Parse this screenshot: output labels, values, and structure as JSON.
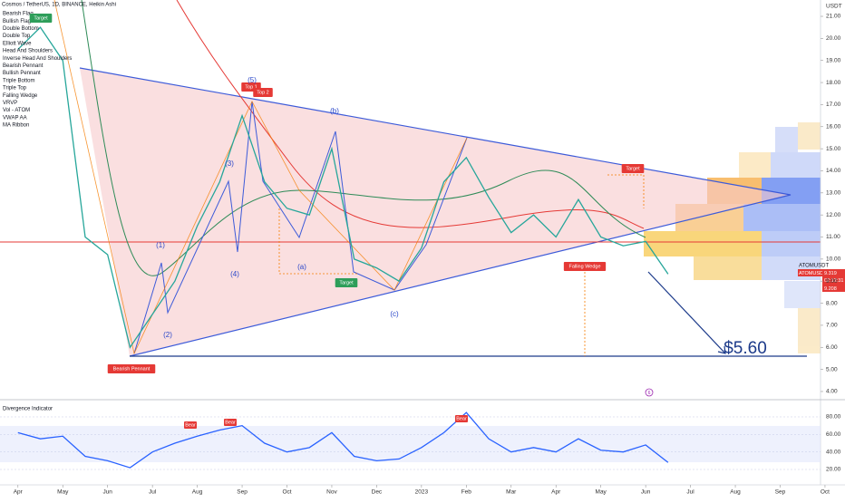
{
  "chart_data": [
    {
      "type": "line",
      "title": "Cosmos / TetherUS, 1D, BINANCE, Heikin Ashi",
      "y_label": "USDT",
      "x": [
        0,
        0.5,
        1,
        1.5,
        2,
        2.5,
        3,
        3.5,
        4,
        4.5,
        5,
        5.5,
        6,
        6.5,
        7,
        7.5,
        8,
        8.5,
        9,
        9.5,
        10,
        10.5,
        11,
        11.5,
        12,
        12.5,
        13,
        13.5,
        14,
        14.5
      ],
      "series": [
        {
          "name": "ATOMUSDT",
          "color": "#26a69a",
          "values": [
            19.5,
            20.5,
            19,
            11,
            10.2,
            6.0,
            7.5,
            9.0,
            11.5,
            13.5,
            16.5,
            13.5,
            12.3,
            12.0,
            15.0,
            10.0,
            9.6,
            9.0,
            10.5,
            13.5,
            14.6,
            12.8,
            11.2,
            12.0,
            11.0,
            12.7,
            11.0,
            10.6,
            10.8,
            9.32
          ]
        }
      ],
      "xlim": [
        -0.4,
        17.9
      ],
      "xticks": [
        {
          "value": 0,
          "label": "Apr"
        },
        {
          "value": 1,
          "label": "May"
        },
        {
          "value": 2,
          "label": "Jun"
        },
        {
          "value": 3,
          "label": "Jul"
        },
        {
          "value": 4,
          "label": "Aug"
        },
        {
          "value": 5,
          "label": "Sep"
        },
        {
          "value": 6,
          "label": "Oct"
        },
        {
          "value": 7,
          "label": "Nov"
        },
        {
          "value": 8,
          "label": "Dec"
        },
        {
          "value": 9,
          "label": "2023"
        },
        {
          "value": 10,
          "label": "Feb"
        },
        {
          "value": 11,
          "label": "Mar"
        },
        {
          "value": 12,
          "label": "Apr"
        },
        {
          "value": 13,
          "label": "May"
        },
        {
          "value": 14,
          "label": "Jun"
        },
        {
          "value": 15,
          "label": "Jul"
        },
        {
          "value": 16,
          "label": "Aug"
        },
        {
          "value": 17,
          "label": "Sep"
        },
        {
          "value": 18,
          "label": "Oct"
        }
      ],
      "ylim": [
        3.67,
        21.74
      ],
      "yticks": [
        {
          "value": 4,
          "label": "4.00"
        },
        {
          "value": 5,
          "label": "5.00"
        },
        {
          "value": 6,
          "label": "6.00"
        },
        {
          "value": 7,
          "label": "7.00"
        },
        {
          "value": 8,
          "label": "8.00"
        },
        {
          "value": 9,
          "label": "9.00"
        },
        {
          "value": 10,
          "label": "10.00"
        },
        {
          "value": 11,
          "label": "11.00"
        },
        {
          "value": 12,
          "label": "12.00"
        },
        {
          "value": 13,
          "label": "13.00"
        },
        {
          "value": 14,
          "label": "14.00"
        },
        {
          "value": 15,
          "label": "15.00"
        },
        {
          "value": 16,
          "label": "16.00"
        },
        {
          "value": 17,
          "label": "17.00"
        },
        {
          "value": 18,
          "label": "18.00"
        },
        {
          "value": 19,
          "label": "19.00"
        },
        {
          "value": 20,
          "label": "20.00"
        },
        {
          "value": 21,
          "label": "21.00"
        }
      ],
      "legend": [
        "Bearish Flag",
        "Bullish Flag",
        "Double Bottom",
        "Double Top",
        "Elliott Wave",
        "Head And Shoulders",
        "Inverse Head And Shoulders",
        "Bearish Pennant",
        "Bullish Pennant",
        "Triple Bottom",
        "Triple Top",
        "Falling Wedge",
        "VRVP",
        "Vol - ATOM",
        "VWAP AA",
        "MA Ribbon"
      ],
      "annotations": [
        "Target",
        "Top 1",
        "Top 2",
        "(5)",
        "(3)",
        "(1)",
        "(2)",
        "(4)",
        "(a)",
        "(b)",
        "(c)",
        "Target",
        "Target",
        "Falling Wedge",
        "Bearish Pennant",
        "$5.60"
      ],
      "last_price_symbol": "ATOMUSDT",
      "last_price": 9.319,
      "countdown": "02:12:31",
      "low_price": 9.208,
      "volume_badge": "6"
    },
    {
      "type": "line",
      "title": "Divergence Indicator",
      "x": [
        0,
        0.5,
        1,
        1.5,
        2,
        2.5,
        3,
        3.5,
        4,
        4.5,
        5,
        5.5,
        6,
        6.5,
        7,
        7.5,
        8,
        8.5,
        9,
        9.5,
        10,
        10.5,
        11,
        11.5,
        12,
        12.5,
        13,
        13.5,
        14,
        14.5
      ],
      "series": [
        {
          "color": "#2962ff",
          "values": [
            62,
            55,
            58,
            35,
            30,
            22,
            40,
            50,
            58,
            65,
            70,
            50,
            40,
            45,
            62,
            35,
            30,
            32,
            45,
            62,
            85,
            55,
            40,
            45,
            40,
            55,
            42,
            40,
            48,
            28
          ]
        }
      ],
      "ylim": [
        7.6,
        95.5
      ],
      "yticks": [
        {
          "value": 20,
          "label": "20.00"
        },
        {
          "value": 40,
          "label": "40.00"
        },
        {
          "value": 60,
          "label": "60.00"
        },
        {
          "value": 80,
          "label": "80.00"
        }
      ],
      "annotations": [
        "Bear",
        "Bear",
        "Bear"
      ]
    }
  ]
}
